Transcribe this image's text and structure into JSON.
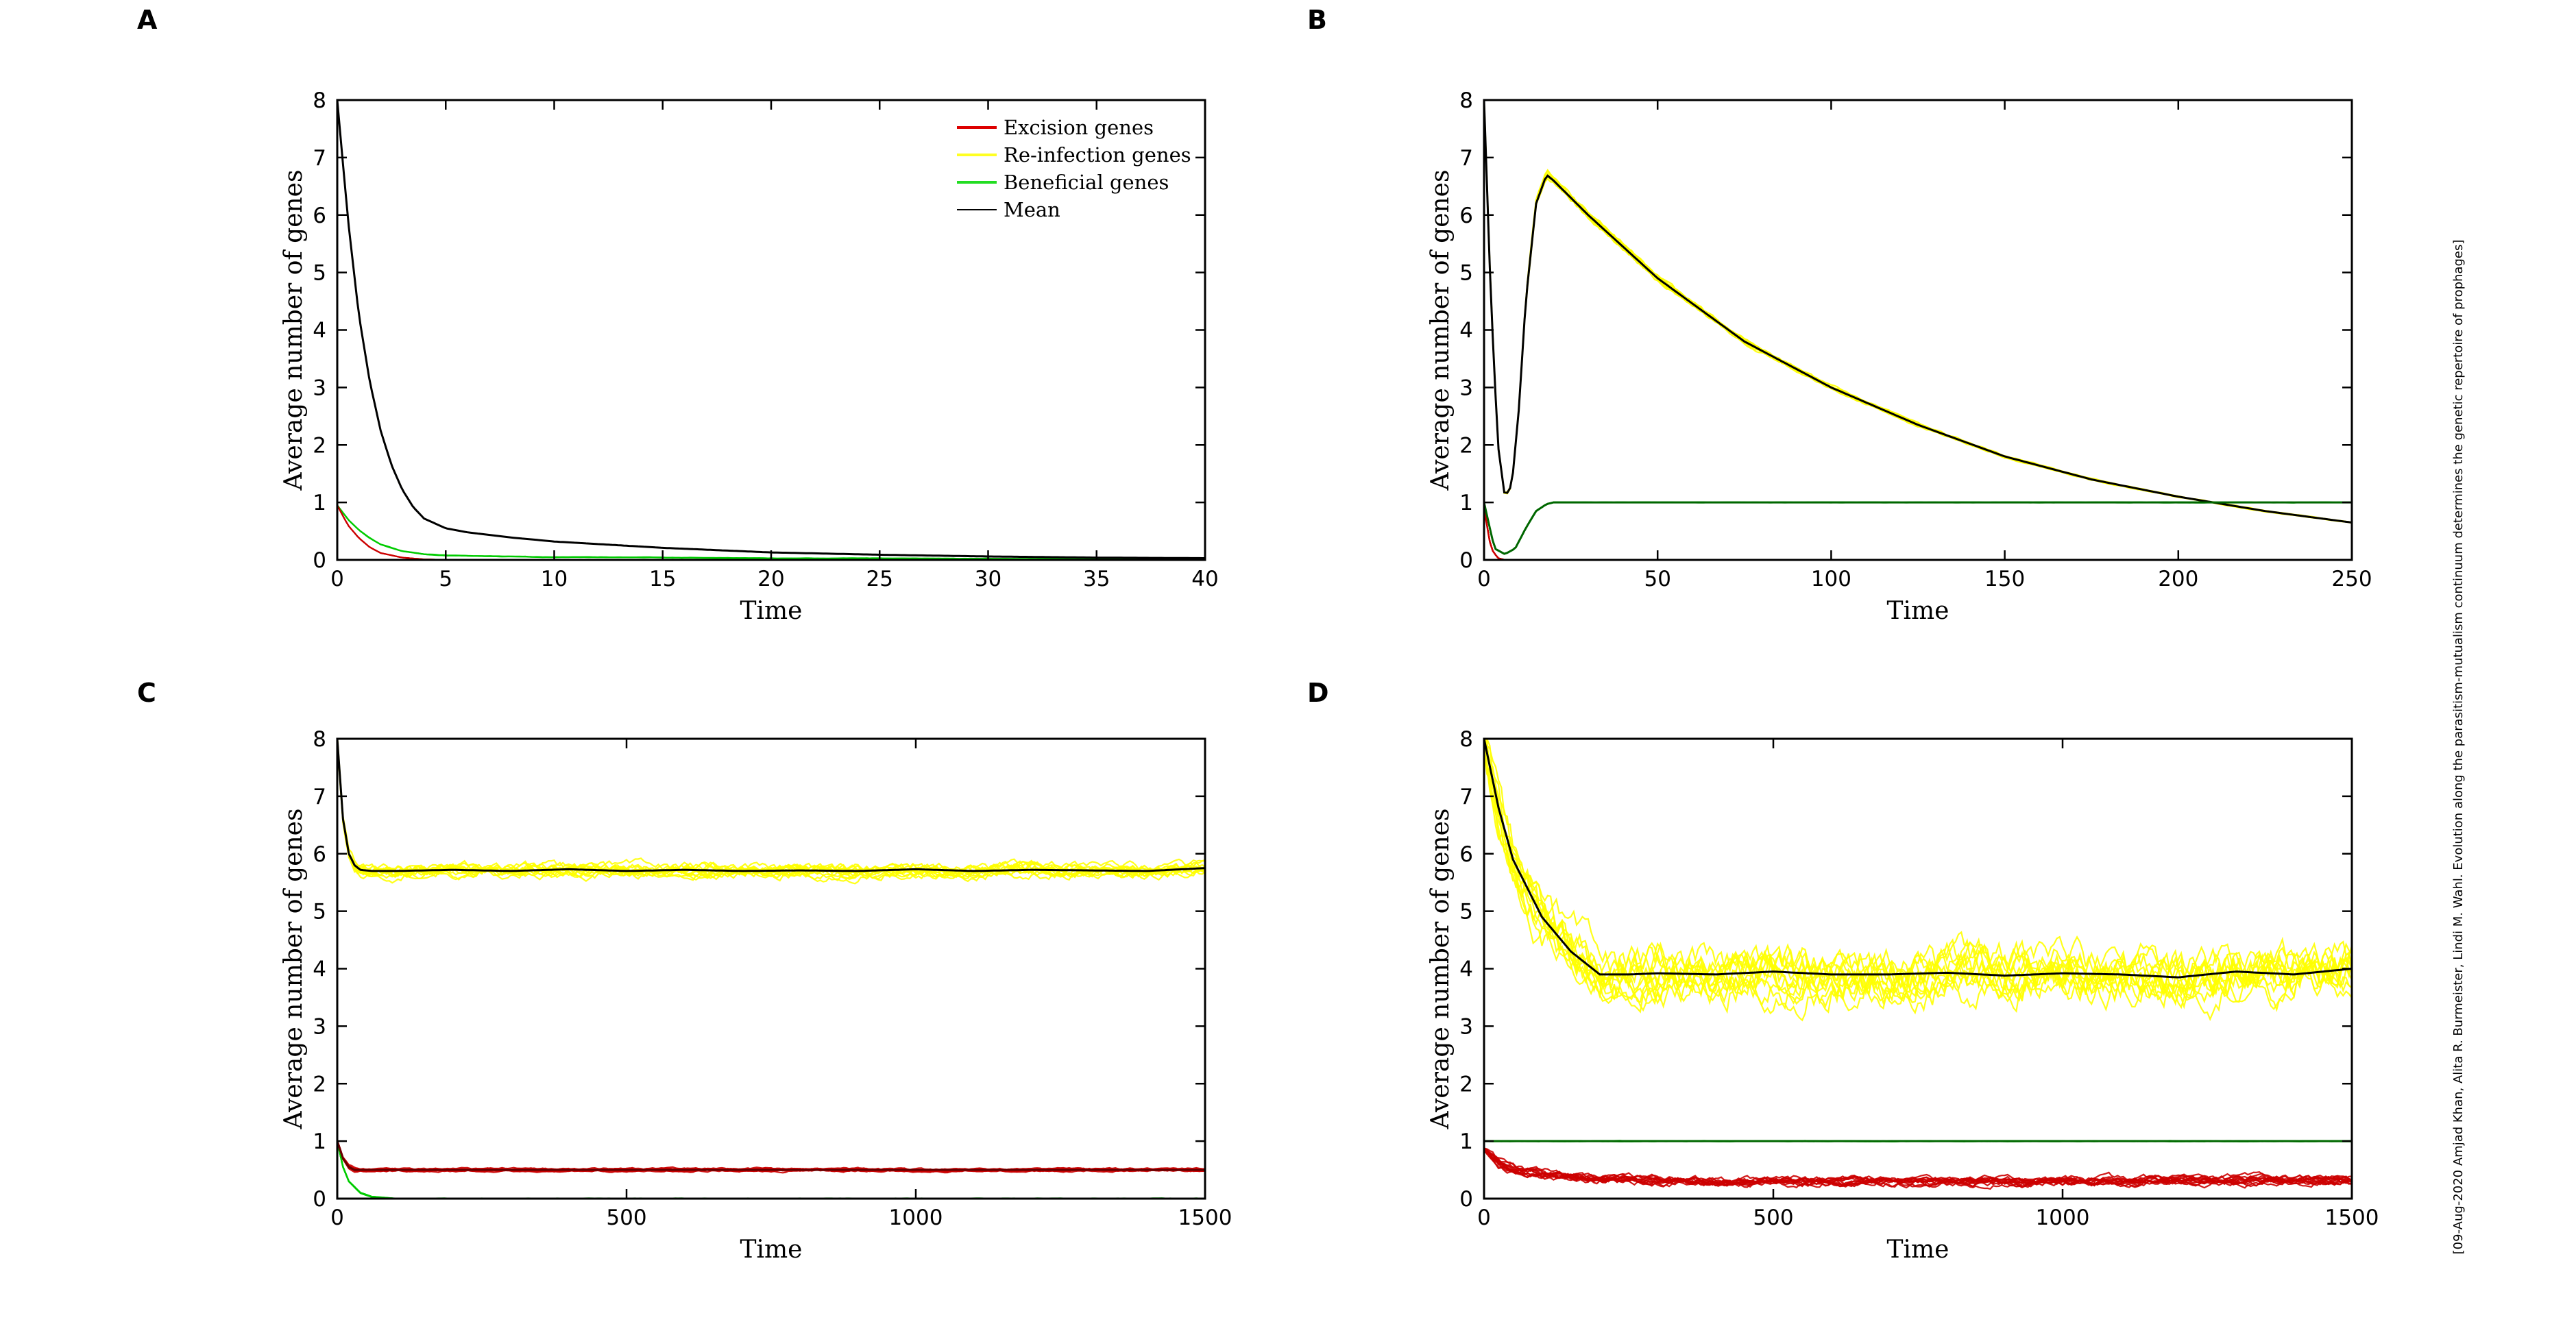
{
  "side_note": "[09-Aug-2020 Amjad Khan, Alita R. Burmeister, Lindi M. Wahl. Evolution along the parasitism-mutualism continuum determines the genetic repertoire of prophages]",
  "colors": {
    "excision": "#cc0000",
    "reinfection": "#ffff00",
    "beneficial": "#00cc00",
    "mean": "#000000"
  },
  "legend": {
    "items": [
      {
        "label": "Excision genes",
        "color": "#dd0000"
      },
      {
        "label": "Re-infection genes",
        "color": "#ffff22"
      },
      {
        "label": "Beneficial genes",
        "color": "#22dd22"
      },
      {
        "label": "Mean",
        "color": "#000000"
      }
    ]
  },
  "chart_data": [
    {
      "panel": "A",
      "type": "line",
      "xlabel": "Time",
      "ylabel": "Average number of genes",
      "xlim": [
        0,
        40
      ],
      "ylim": [
        0,
        8
      ],
      "xticks": [
        0,
        5,
        10,
        15,
        20,
        25,
        30,
        35,
        40
      ],
      "yticks": [
        0,
        1,
        2,
        3,
        4,
        5,
        6,
        7,
        8
      ],
      "legend_position": "top-right",
      "series": [
        {
          "name": "Re-infection genes",
          "color": "#ffff00",
          "x": [
            0,
            0.5,
            1,
            1.5,
            2,
            2.5,
            3,
            3.5,
            4,
            5,
            6,
            8,
            10,
            15,
            20,
            25,
            30,
            35,
            40
          ],
          "y": [
            8.0,
            5.9,
            4.25,
            3.1,
            2.25,
            1.65,
            1.22,
            0.92,
            0.72,
            0.55,
            0.48,
            0.39,
            0.32,
            0.21,
            0.13,
            0.09,
            0.06,
            0.04,
            0.03
          ]
        },
        {
          "name": "Beneficial genes",
          "color": "#00cc00",
          "x": [
            0,
            0.5,
            1,
            1.5,
            2,
            3,
            4,
            5,
            8,
            10,
            20,
            30,
            40
          ],
          "y": [
            0.95,
            0.7,
            0.52,
            0.38,
            0.27,
            0.15,
            0.1,
            0.08,
            0.06,
            0.05,
            0.03,
            0.02,
            0.01
          ]
        },
        {
          "name": "Excision genes",
          "color": "#cc0000",
          "x": [
            0,
            0.5,
            1,
            1.5,
            2,
            3,
            4,
            5,
            40
          ],
          "y": [
            0.95,
            0.6,
            0.38,
            0.22,
            0.12,
            0.04,
            0.01,
            0.0,
            0.0
          ]
        },
        {
          "name": "Mean (re-infection)",
          "color": "#000000",
          "x": [
            0,
            0.5,
            1,
            1.5,
            2,
            2.5,
            3,
            3.5,
            4,
            5,
            6,
            8,
            10,
            15,
            20,
            25,
            30,
            35,
            40
          ],
          "y": [
            8.0,
            5.9,
            4.25,
            3.1,
            2.25,
            1.65,
            1.22,
            0.92,
            0.72,
            0.55,
            0.48,
            0.39,
            0.32,
            0.21,
            0.13,
            0.09,
            0.06,
            0.04,
            0.03
          ]
        }
      ]
    },
    {
      "panel": "B",
      "type": "line",
      "xlabel": "Time",
      "ylabel": "Average number of genes",
      "xlim": [
        0,
        250
      ],
      "ylim": [
        0,
        8
      ],
      "xticks": [
        0,
        50,
        100,
        150,
        200,
        250
      ],
      "yticks": [
        0,
        1,
        2,
        3,
        4,
        5,
        6,
        7,
        8
      ],
      "series": [
        {
          "name": "Re-infection genes",
          "color": "#ffff00",
          "x": [
            0,
            2,
            4,
            6,
            8,
            10,
            12,
            15,
            18,
            20,
            30,
            50,
            75,
            100,
            125,
            150,
            175,
            200,
            225,
            250
          ],
          "y": [
            8.0,
            4.5,
            2.0,
            1.1,
            1.3,
            2.6,
            4.5,
            6.2,
            6.7,
            6.6,
            6.0,
            4.9,
            3.8,
            3.0,
            2.35,
            1.8,
            1.4,
            1.1,
            0.85,
            0.65
          ]
        },
        {
          "name": "Beneficial genes",
          "color": "#00cc00",
          "x": [
            0,
            3,
            6,
            9,
            12,
            15,
            18,
            20,
            25,
            250
          ],
          "y": [
            1.0,
            0.2,
            0.1,
            0.2,
            0.55,
            0.85,
            0.97,
            1.0,
            1.0,
            1.0
          ]
        },
        {
          "name": "Excision genes",
          "color": "#cc0000",
          "x": [
            0,
            2,
            4,
            6,
            250
          ],
          "y": [
            0.9,
            0.2,
            0.03,
            0.0,
            0.0
          ]
        },
        {
          "name": "Mean (re-infection)",
          "color": "#000000",
          "x": [
            0,
            2,
            4,
            6,
            8,
            10,
            12,
            15,
            18,
            20,
            30,
            50,
            75,
            100,
            125,
            150,
            175,
            200,
            225,
            250
          ],
          "y": [
            8.0,
            4.5,
            2.0,
            1.1,
            1.3,
            2.6,
            4.5,
            6.2,
            6.7,
            6.6,
            6.0,
            4.9,
            3.8,
            3.0,
            2.35,
            1.8,
            1.4,
            1.1,
            0.85,
            0.65
          ]
        },
        {
          "name": "Mean (beneficial)",
          "color": "#006600",
          "x": [
            0,
            3,
            6,
            9,
            12,
            15,
            18,
            20,
            25,
            250
          ],
          "y": [
            1.0,
            0.2,
            0.1,
            0.2,
            0.55,
            0.85,
            0.97,
            1.0,
            1.0,
            1.0
          ]
        }
      ]
    },
    {
      "panel": "C",
      "type": "line",
      "xlabel": "Time",
      "ylabel": "Average number of genes",
      "xlim": [
        0,
        1500
      ],
      "ylim": [
        0,
        8
      ],
      "xticks": [
        0,
        500,
        1000,
        1500
      ],
      "yticks": [
        0,
        1,
        2,
        3,
        4,
        5,
        6,
        7,
        8
      ],
      "series": [
        {
          "name": "Re-infection genes",
          "color": "#ffff00",
          "x": [
            0,
            10,
            20,
            30,
            40,
            60,
            100,
            200,
            300,
            400,
            500,
            600,
            700,
            800,
            900,
            1000,
            1100,
            1200,
            1300,
            1400,
            1500
          ],
          "y": [
            8.0,
            6.6,
            6.0,
            5.8,
            5.72,
            5.7,
            5.7,
            5.72,
            5.7,
            5.73,
            5.7,
            5.72,
            5.7,
            5.71,
            5.7,
            5.73,
            5.7,
            5.72,
            5.71,
            5.7,
            5.75
          ]
        },
        {
          "name": "Excision genes",
          "color": "#cc0000",
          "x": [
            0,
            10,
            20,
            30,
            50,
            100,
            1500
          ],
          "y": [
            1.0,
            0.7,
            0.55,
            0.5,
            0.5,
            0.5,
            0.5
          ]
        },
        {
          "name": "Beneficial genes",
          "color": "#00cc00",
          "x": [
            0,
            10,
            20,
            40,
            60,
            100,
            1500
          ],
          "y": [
            1.0,
            0.55,
            0.3,
            0.1,
            0.03,
            0.0,
            0.0
          ]
        },
        {
          "name": "Mean (re-infection)",
          "color": "#000000",
          "x": [
            0,
            10,
            20,
            30,
            40,
            60,
            100,
            200,
            300,
            400,
            500,
            600,
            700,
            800,
            900,
            1000,
            1100,
            1200,
            1300,
            1400,
            1500
          ],
          "y": [
            8.0,
            6.6,
            6.0,
            5.8,
            5.72,
            5.7,
            5.7,
            5.72,
            5.7,
            5.73,
            5.7,
            5.72,
            5.7,
            5.71,
            5.7,
            5.73,
            5.7,
            5.72,
            5.71,
            5.7,
            5.75
          ]
        },
        {
          "name": "Mean (excision)",
          "color": "#660000",
          "x": [
            0,
            10,
            20,
            30,
            50,
            100,
            1500
          ],
          "y": [
            1.0,
            0.7,
            0.55,
            0.5,
            0.5,
            0.5,
            0.5
          ]
        }
      ]
    },
    {
      "panel": "D",
      "type": "line",
      "xlabel": "Time",
      "ylabel": "Average number of genes",
      "xlim": [
        0,
        1500
      ],
      "ylim": [
        0,
        8
      ],
      "xticks": [
        0,
        500,
        1000,
        1500
      ],
      "yticks": [
        0,
        1,
        2,
        3,
        4,
        5,
        6,
        7,
        8
      ],
      "series": [
        {
          "name": "Re-infection genes",
          "color": "#ffff00",
          "x": [
            0,
            25,
            50,
            100,
            150,
            200,
            250,
            300,
            400,
            500,
            600,
            700,
            800,
            900,
            1000,
            1100,
            1200,
            1300,
            1400,
            1500
          ],
          "y": [
            8.0,
            6.8,
            5.9,
            4.9,
            4.3,
            3.9,
            3.9,
            3.92,
            3.9,
            3.95,
            3.9,
            3.9,
            3.93,
            3.88,
            3.92,
            3.9,
            3.85,
            3.95,
            3.9,
            4.0
          ]
        },
        {
          "name": "Beneficial genes",
          "color": "#00cc00",
          "x": [
            0,
            1500
          ],
          "y": [
            1.0,
            1.0
          ]
        },
        {
          "name": "Excision genes",
          "color": "#cc0000",
          "x": [
            0,
            25,
            50,
            100,
            150,
            200,
            300,
            400,
            500,
            700,
            1000,
            1200,
            1500
          ],
          "y": [
            0.85,
            0.62,
            0.52,
            0.42,
            0.37,
            0.34,
            0.32,
            0.3,
            0.3,
            0.3,
            0.3,
            0.32,
            0.32
          ]
        },
        {
          "name": "Mean (re-infection)",
          "color": "#000000",
          "x": [
            0,
            25,
            50,
            100,
            150,
            200,
            250,
            300,
            400,
            500,
            600,
            700,
            800,
            900,
            1000,
            1100,
            1200,
            1300,
            1400,
            1500
          ],
          "y": [
            8.0,
            6.8,
            5.9,
            4.9,
            4.3,
            3.9,
            3.9,
            3.92,
            3.9,
            3.95,
            3.9,
            3.9,
            3.93,
            3.88,
            3.92,
            3.9,
            3.85,
            3.95,
            3.9,
            4.0
          ]
        },
        {
          "name": "Mean (beneficial)",
          "color": "#006600",
          "x": [
            0,
            1500
          ],
          "y": [
            1.0,
            1.0
          ]
        }
      ]
    }
  ]
}
